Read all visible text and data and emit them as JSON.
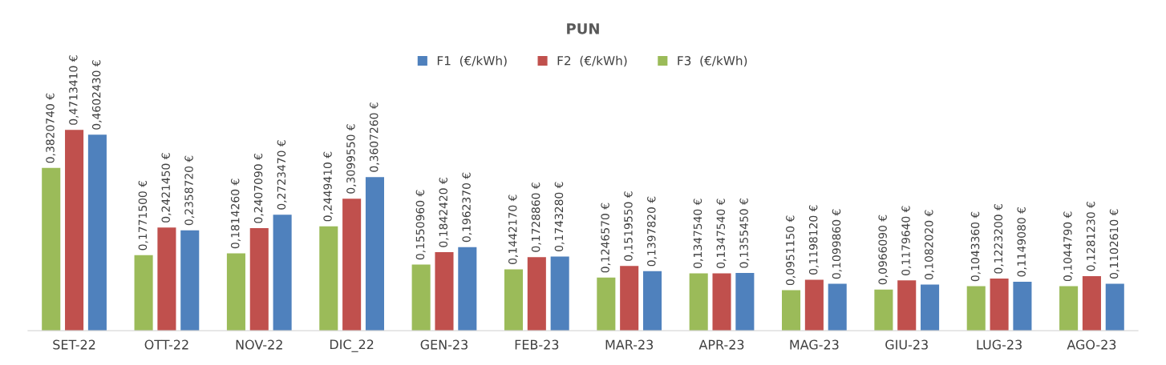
{
  "chart_data": {
    "type": "bar",
    "title": "PUN",
    "categories": [
      "SET-22",
      "OTT-22",
      "NOV-22",
      "DIC_22",
      "GEN-23",
      "FEB-23",
      "MAR-23",
      "APR-23",
      "MAG-23",
      "GIU-23",
      "LUG-23",
      "AGO-23"
    ],
    "series": [
      {
        "name": "F3  (€/kWh)",
        "color": "#9bbb59",
        "values": [
          0.382074,
          0.17715,
          0.181426,
          0.244941,
          0.155096,
          0.144217,
          0.124657,
          0.134754,
          0.095115,
          0.096609,
          0.104336,
          0.104479
        ],
        "value_labels": [
          "0,3820740 €",
          "0,1771500 €",
          "0,1814260 €",
          "0,2449410 €",
          "0,1550960 €",
          "0,1442170 €",
          "0,1246570 €",
          "0,1347540 €",
          "0,0951150 €",
          "0,0966090 €",
          "0,1043360 €",
          "0,1044790 €"
        ]
      },
      {
        "name": "F2  (€/kWh)",
        "color": "#c0504d",
        "values": [
          0.471341,
          0.242145,
          0.240709,
          0.309955,
          0.184242,
          0.172886,
          0.151955,
          0.134754,
          0.119812,
          0.117964,
          0.12232,
          0.128123
        ],
        "value_labels": [
          "0,4713410 €",
          "0,2421450 €",
          "0,2407090 €",
          "0,3099550 €",
          "0,1842420 €",
          "0,1728860 €",
          "0,1519550 €",
          "0,1347540 €",
          "0,1198120 €",
          "0,1179640 €",
          "0,1223200 €",
          "0,1281230 €"
        ]
      },
      {
        "name": "F1  (€/kWh)",
        "color": "#4f81bd",
        "values": [
          0.460243,
          0.235872,
          0.272347,
          0.360726,
          0.196237,
          0.174328,
          0.139782,
          0.135545,
          0.109986,
          0.108202,
          0.114908,
          0.110261
        ],
        "value_labels": [
          "0,4602430 €",
          "0,2358720 €",
          "0,2723470 €",
          "0,3607260 €",
          "0,1962370 €",
          "0,1743280 €",
          "0,1397820 €",
          "0,1355450 €",
          "0,1099860 €",
          "0,1082020 €",
          "0,1149080 €",
          "0,1102610 €"
        ]
      }
    ],
    "legend": "top",
    "grid": false,
    "tick_labels": "x"
  }
}
